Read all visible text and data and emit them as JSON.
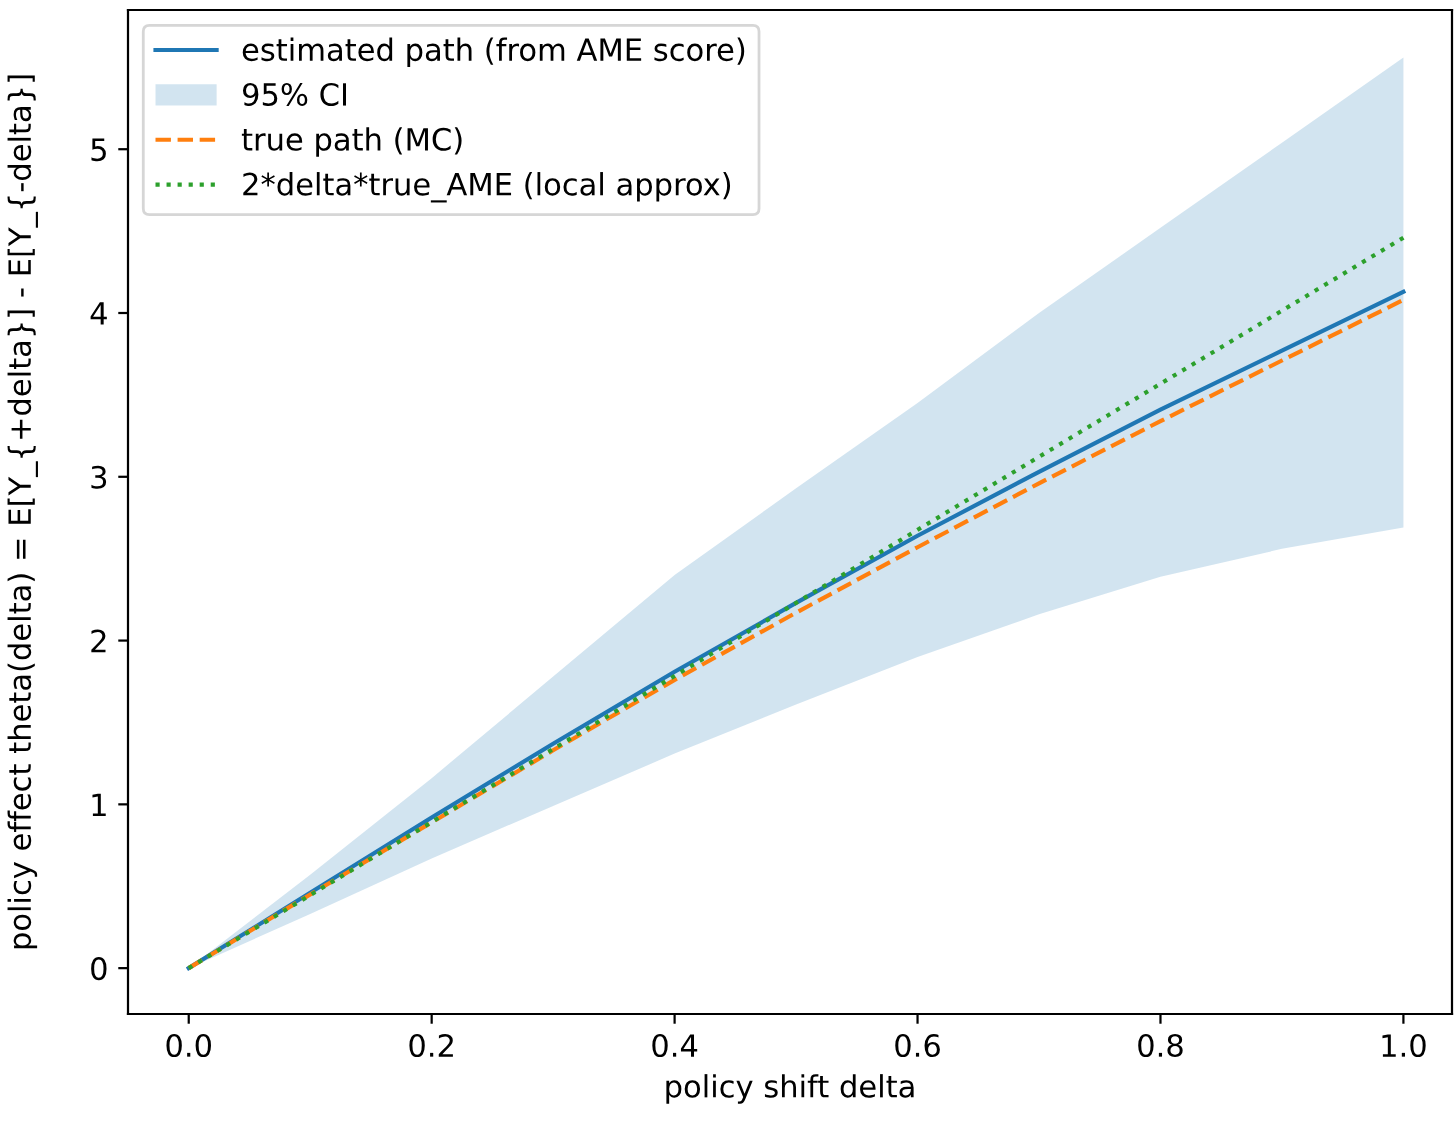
{
  "chart_data": {
    "type": "line",
    "xlabel": "policy shift delta",
    "ylabel": "policy effect theta(delta) = E[Y_{+delta}] - E[Y_{-delta}]",
    "x": [
      0,
      0.1,
      0.2,
      0.3,
      0.4,
      0.5,
      0.6,
      0.7,
      0.8,
      0.9,
      1.0
    ],
    "series": [
      {
        "name": "estimated path (from AME score)",
        "color": "#1f77b4",
        "line_style": "solid",
        "values": [
          0,
          0.46,
          0.92,
          1.37,
          1.81,
          2.23,
          2.64,
          3.03,
          3.41,
          3.77,
          4.13
        ]
      },
      {
        "name": "95% CI",
        "type": "area",
        "color": "#1f77b4",
        "values": [
          null,
          null,
          null,
          null,
          null,
          null,
          null,
          null,
          null,
          null,
          null
        ],
        "lower": [
          0,
          0.33,
          0.67,
          0.99,
          1.31,
          1.61,
          1.9,
          2.16,
          2.39,
          2.56,
          2.69
        ],
        "upper": [
          0,
          0.57,
          1.16,
          1.78,
          2.4,
          2.93,
          3.45,
          4.0,
          4.52,
          5.04,
          5.56
        ]
      },
      {
        "name": "true path (MC)",
        "color": "#ff7f0e",
        "line_style": "dashed",
        "values": [
          0,
          0.45,
          0.89,
          1.33,
          1.76,
          2.17,
          2.57,
          2.96,
          3.34,
          3.71,
          4.08
        ]
      },
      {
        "name": "2*delta*true_AME (local approx)",
        "color": "#2ca02c",
        "line_style": "dotted",
        "x": [
          0,
          1.0
        ],
        "values": [
          0,
          4.46
        ]
      }
    ],
    "xlim": [
      -0.05,
      1.04
    ],
    "ylim": [
      -0.28,
      5.85
    ],
    "xticks": [
      {
        "value": 0,
        "label": "0.0"
      },
      0.2,
      0.4,
      0.6,
      0.8,
      {
        "value": 1,
        "label": "1.0"
      }
    ],
    "yticks": [
      0,
      1,
      2,
      3,
      4,
      5
    ],
    "legend": "top left",
    "grid": false
  }
}
